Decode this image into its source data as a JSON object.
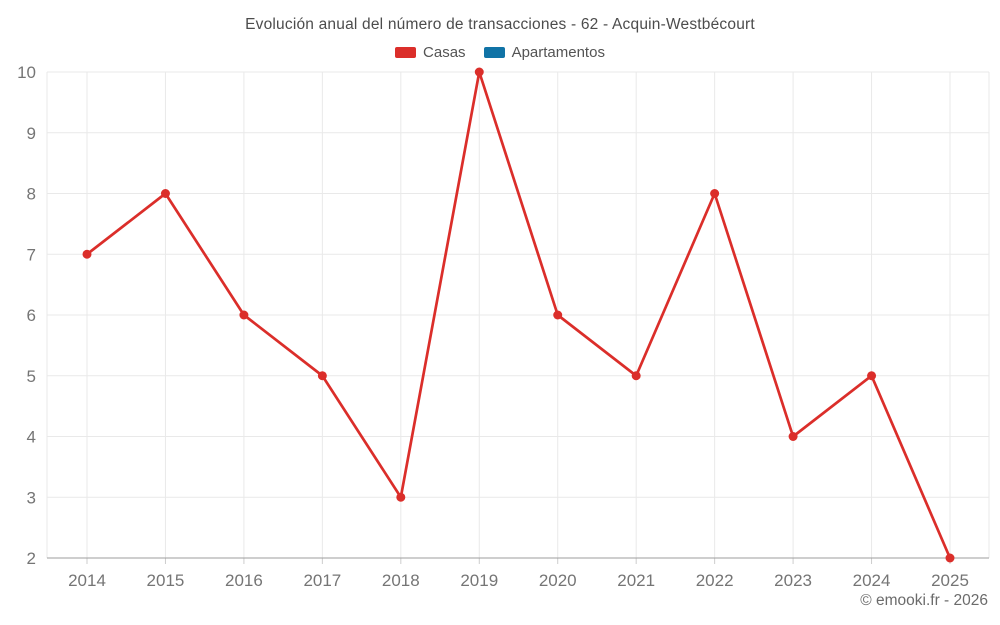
{
  "title": "Evolución anual del número de transacciones - 62 - Acquin-Westbécourt",
  "watermark": "© emooki.fr - 2026",
  "legend": [
    {
      "label": "Casas",
      "color": "#db2e2a"
    },
    {
      "label": "Apartamentos",
      "color": "#1073a6"
    }
  ],
  "colors": {
    "grid": "#e9e9e9",
    "axis_line": "#9e9e9e",
    "tick_mark": "#cdcdcd",
    "tick_label": "#757575"
  },
  "chart_data": {
    "type": "line",
    "title": "Evolución anual del número de transacciones - 62 - Acquin-Westbécourt",
    "categories": [
      "2014",
      "2015",
      "2016",
      "2017",
      "2018",
      "2019",
      "2020",
      "2021",
      "2022",
      "2023",
      "2024",
      "2025"
    ],
    "series": [
      {
        "name": "Casas",
        "color": "#db2e2a",
        "values": [
          7,
          8,
          6,
          5,
          3,
          10,
          6,
          5,
          8,
          4,
          5,
          2
        ]
      },
      {
        "name": "Apartamentos",
        "color": "#1073a6",
        "values": []
      }
    ],
    "xlabel": "",
    "ylabel": "",
    "ylim": [
      2,
      10
    ],
    "yticks": [
      2,
      3,
      4,
      5,
      6,
      7,
      8,
      9,
      10
    ],
    "grid": true,
    "legend_position": "top"
  }
}
